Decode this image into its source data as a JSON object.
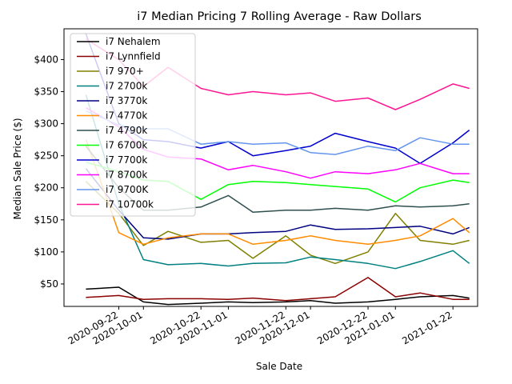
{
  "chart_data": {
    "type": "line",
    "title": "i7 Median Pricing 7 Rolling Average - Raw Dollars",
    "xlabel": "Sale Date",
    "ylabel": "Median Sale Price ($)",
    "xlim": [
      "2020-09-02",
      "2021-01-31"
    ],
    "ylim": [
      15,
      448
    ],
    "x_ticks": [
      "2020-09-22",
      "2020-10-01",
      "2020-10-22",
      "2020-11-01",
      "2020-11-22",
      "2020-12-01",
      "2020-12-22",
      "2021-01-01",
      "2021-01-22"
    ],
    "y_ticks": [
      50,
      100,
      150,
      200,
      250,
      300,
      350,
      400
    ],
    "y_tick_labels": [
      "$50",
      "$100",
      "$150",
      "$200",
      "$250",
      "$300",
      "$350",
      "$400"
    ],
    "legend_position": "upper-left",
    "grid": false,
    "series": [
      {
        "name": "i7 Nehalem",
        "color": "#000000",
        "x": [
          "2020-09-10",
          "2020-09-22",
          "2020-10-01",
          "2020-10-10",
          "2020-10-22",
          "2020-11-01",
          "2020-11-10",
          "2020-11-22",
          "2020-12-01",
          "2020-12-10",
          "2020-12-22",
          "2021-01-01",
          "2021-01-10",
          "2021-01-22",
          "2021-01-28"
        ],
        "values": [
          42,
          45,
          22,
          18,
          20,
          22,
          21,
          22,
          24,
          20,
          22,
          26,
          30,
          32,
          28
        ]
      },
      {
        "name": "i7 Lynnfield",
        "color": "#8b0000",
        "x": [
          "2020-09-10",
          "2020-09-22",
          "2020-10-01",
          "2020-10-10",
          "2020-10-22",
          "2020-11-01",
          "2020-11-10",
          "2020-11-22",
          "2020-12-01",
          "2020-12-10",
          "2020-12-22",
          "2021-01-01",
          "2021-01-10",
          "2021-01-22",
          "2021-01-28"
        ],
        "values": [
          29,
          32,
          26,
          27,
          27,
          26,
          28,
          24,
          27,
          30,
          60,
          30,
          36,
          26,
          26
        ]
      },
      {
        "name": "i7 970+",
        "color": "#808000",
        "x": [
          "2020-09-10",
          "2020-09-22",
          "2020-10-01",
          "2020-10-10",
          "2020-10-22",
          "2020-11-01",
          "2020-11-10",
          "2020-11-22",
          "2020-12-01",
          "2020-12-10",
          "2020-12-22",
          "2021-01-01",
          "2021-01-10",
          "2021-01-22",
          "2021-01-28"
        ],
        "values": [
          210,
          160,
          110,
          132,
          115,
          118,
          90,
          125,
          95,
          82,
          100,
          160,
          118,
          112,
          118
        ]
      },
      {
        "name": "i7 2700k",
        "color": "#008080",
        "x": [
          "2020-09-10",
          "2020-09-22",
          "2020-10-01",
          "2020-10-10",
          "2020-10-22",
          "2020-11-01",
          "2020-11-10",
          "2020-11-22",
          "2020-12-01",
          "2020-12-10",
          "2020-12-22",
          "2021-01-01",
          "2021-01-10",
          "2021-01-22",
          "2021-01-28"
        ],
        "values": [
          345,
          175,
          88,
          80,
          82,
          78,
          82,
          83,
          92,
          88,
          82,
          74,
          85,
          102,
          82
        ]
      },
      {
        "name": "i7 3770k",
        "color": "#000080",
        "x": [
          "2020-09-10",
          "2020-09-22",
          "2020-10-01",
          "2020-10-10",
          "2020-10-22",
          "2020-11-01",
          "2020-11-10",
          "2020-11-22",
          "2020-12-01",
          "2020-12-10",
          "2020-12-22",
          "2021-01-01",
          "2021-01-10",
          "2021-01-22",
          "2021-01-28"
        ],
        "values": [
          230,
          165,
          122,
          120,
          128,
          128,
          130,
          132,
          142,
          135,
          136,
          138,
          140,
          128,
          138
        ]
      },
      {
        "name": "i7 4770k",
        "color": "#ff8c00",
        "x": [
          "2020-09-10",
          "2020-09-22",
          "2020-10-01",
          "2020-10-10",
          "2020-10-22",
          "2020-11-01",
          "2020-11-10",
          "2020-11-22",
          "2020-12-01",
          "2020-12-10",
          "2020-12-22",
          "2021-01-01",
          "2021-01-10",
          "2021-01-22",
          "2021-01-28"
        ],
        "values": [
          275,
          130,
          112,
          122,
          128,
          128,
          112,
          118,
          125,
          118,
          112,
          118,
          125,
          152,
          130
        ]
      },
      {
        "name": "i7 4790k",
        "color": "#2f4f4f",
        "x": [
          "2020-09-10",
          "2020-09-22",
          "2020-10-01",
          "2020-10-10",
          "2020-10-22",
          "2020-11-01",
          "2020-11-10",
          "2020-11-22",
          "2020-12-01",
          "2020-12-10",
          "2020-12-22",
          "2021-01-01",
          "2021-01-10",
          "2021-01-22",
          "2021-01-28"
        ],
        "values": [
          265,
          200,
          165,
          165,
          170,
          188,
          162,
          165,
          165,
          168,
          165,
          172,
          170,
          172,
          175
        ]
      },
      {
        "name": "i7 6700k",
        "color": "#00ff00",
        "x": [
          "2020-09-10",
          "2020-09-22",
          "2020-10-01",
          "2020-10-10",
          "2020-10-22",
          "2020-11-01",
          "2020-11-10",
          "2020-11-22",
          "2020-12-01",
          "2020-12-10",
          "2020-12-22",
          "2021-01-01",
          "2021-01-10",
          "2021-01-22",
          "2021-01-28"
        ],
        "values": [
          240,
          225,
          212,
          210,
          182,
          205,
          210,
          208,
          205,
          202,
          198,
          178,
          200,
          212,
          208
        ]
      },
      {
        "name": "i7 7700k",
        "color": "#0000cd",
        "x": [
          "2020-09-10",
          "2020-09-22",
          "2020-10-01",
          "2020-10-10",
          "2020-10-22",
          "2020-11-01",
          "2020-11-10",
          "2020-11-22",
          "2020-12-01",
          "2020-12-10",
          "2020-12-22",
          "2021-01-01",
          "2021-01-10",
          "2021-01-22",
          "2021-01-28"
        ],
        "values": [
          440,
          300,
          275,
          272,
          262,
          272,
          250,
          258,
          265,
          285,
          272,
          262,
          238,
          270,
          290
        ]
      },
      {
        "name": "i7 8700k",
        "color": "#ff00ff",
        "x": [
          "2020-09-10",
          "2020-09-22",
          "2020-10-01",
          "2020-10-10",
          "2020-10-22",
          "2020-11-01",
          "2020-11-10",
          "2020-11-22",
          "2020-12-01",
          "2020-12-10",
          "2020-12-22",
          "2021-01-01",
          "2021-01-10",
          "2021-01-22",
          "2021-01-28"
        ],
        "values": [
          325,
          295,
          260,
          248,
          245,
          228,
          235,
          225,
          215,
          225,
          222,
          228,
          238,
          222,
          222
        ]
      },
      {
        "name": "i7 9700K",
        "color": "#6495ed",
        "x": [
          "2020-09-10",
          "2020-09-22",
          "2020-10-01",
          "2020-10-10",
          "2020-10-22",
          "2020-11-01",
          "2020-11-10",
          "2020-11-22",
          "2020-12-01",
          "2020-12-10",
          "2020-12-22",
          "2021-01-01",
          "2021-01-10",
          "2021-01-22",
          "2021-01-28"
        ],
        "values": [
          320,
          298,
          292,
          292,
          268,
          272,
          268,
          270,
          255,
          252,
          265,
          258,
          278,
          268,
          268
        ]
      },
      {
        "name": "i7 10700k",
        "color": "#ff1493",
        "x": [
          "2020-09-10",
          "2020-09-22",
          "2020-10-01",
          "2020-10-10",
          "2020-10-22",
          "2020-11-01",
          "2020-11-10",
          "2020-11-22",
          "2020-12-01",
          "2020-12-10",
          "2020-12-22",
          "2021-01-01",
          "2021-01-10",
          "2021-01-22",
          "2021-01-28"
        ],
        "values": [
          432,
          400,
          358,
          388,
          355,
          345,
          350,
          345,
          348,
          335,
          340,
          322,
          338,
          362,
          355
        ]
      }
    ]
  }
}
